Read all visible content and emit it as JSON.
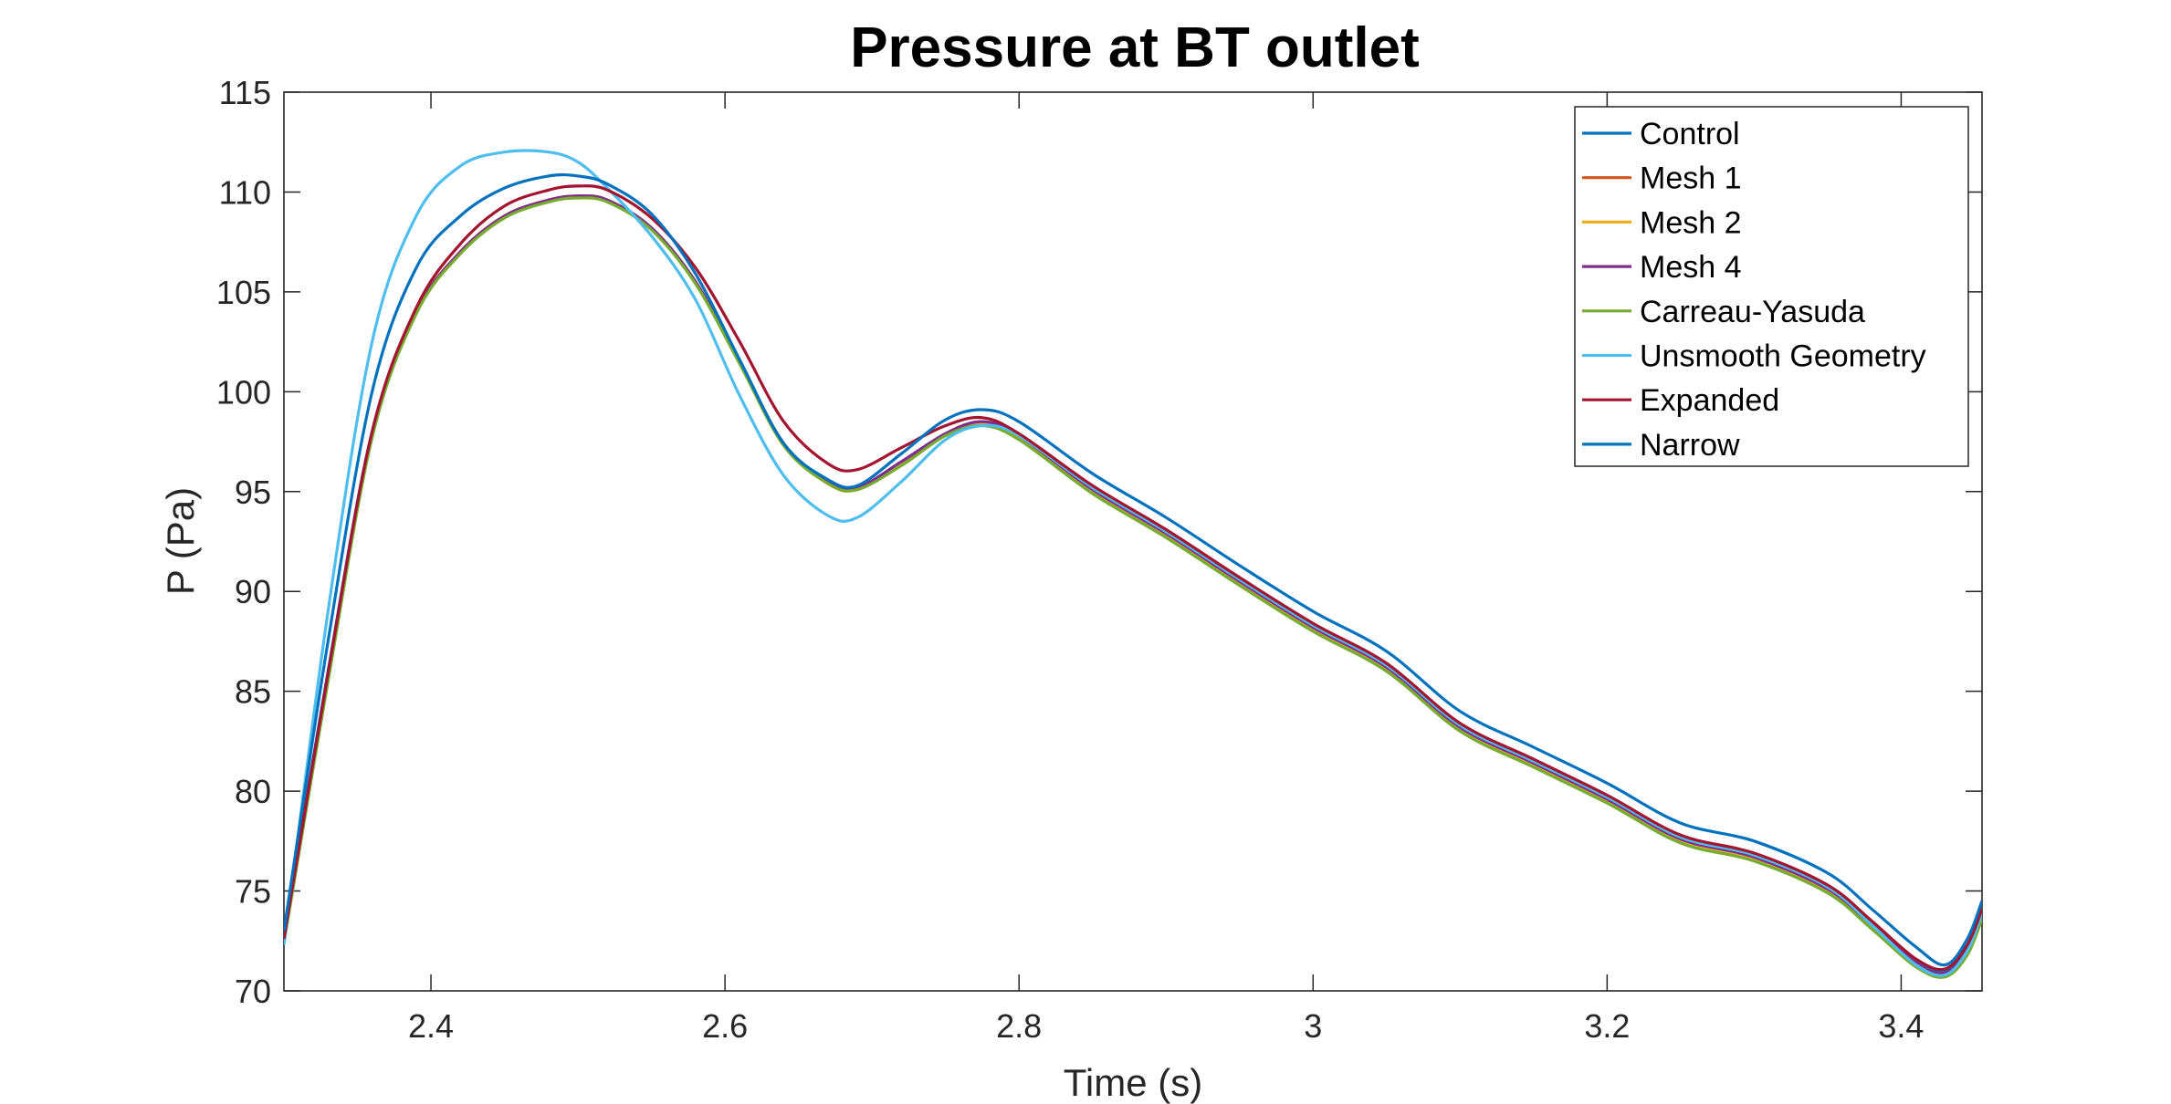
{
  "chart_data": {
    "type": "line",
    "title": "Pressure at BT outlet",
    "xlabel": "Time (s)",
    "ylabel": "P (Pa)",
    "xlim": [
      2.3,
      3.455
    ],
    "ylim": [
      70,
      115
    ],
    "xticks": [
      2.4,
      2.6,
      2.8,
      3,
      3.2,
      3.4
    ],
    "xtick_labels": [
      "2.4",
      "2.6",
      "2.8",
      "3",
      "3.2",
      "3.4"
    ],
    "yticks": [
      70,
      75,
      80,
      85,
      90,
      95,
      100,
      105,
      110,
      115
    ],
    "ytick_labels": [
      "70",
      "75",
      "80",
      "85",
      "90",
      "95",
      "100",
      "105",
      "110",
      "115"
    ],
    "grid": false,
    "legend_position": "top-right",
    "x": [
      2.3,
      2.33,
      2.36,
      2.39,
      2.42,
      2.45,
      2.48,
      2.5,
      2.52,
      2.55,
      2.58,
      2.61,
      2.64,
      2.67,
      2.69,
      2.72,
      2.75,
      2.775,
      2.8,
      2.85,
      2.9,
      2.95,
      3.0,
      3.05,
      3.1,
      3.15,
      3.2,
      3.25,
      3.3,
      3.35,
      3.38,
      3.41,
      3.43,
      3.445,
      3.455
    ],
    "series": [
      {
        "name": "Control",
        "color": "#0072BD",
        "values": [
          72.8,
          86.0,
          98.0,
          104.0,
          107.0,
          108.8,
          109.6,
          109.8,
          109.6,
          108.2,
          105.5,
          101.5,
          97.4,
          95.5,
          95.1,
          96.4,
          97.9,
          98.5,
          97.8,
          95.2,
          93.0,
          90.6,
          88.3,
          86.3,
          83.3,
          81.5,
          79.7,
          77.7,
          76.8,
          75.2,
          73.4,
          71.5,
          71.0,
          72.2,
          74.0
        ]
      },
      {
        "name": "Mesh 1",
        "color": "#D95319",
        "values": [
          72.5,
          85.7,
          97.8,
          104.0,
          107.0,
          108.8,
          109.6,
          109.8,
          109.6,
          108.2,
          105.5,
          101.5,
          97.4,
          95.5,
          95.1,
          96.4,
          97.9,
          98.5,
          97.8,
          95.1,
          92.9,
          90.5,
          88.2,
          86.2,
          83.2,
          81.4,
          79.6,
          77.6,
          76.7,
          75.1,
          73.3,
          71.4,
          70.9,
          72.0,
          73.8
        ]
      },
      {
        "name": "Mesh 2",
        "color": "#EDB120",
        "values": [
          72.5,
          85.6,
          97.8,
          104.0,
          107.0,
          108.8,
          109.6,
          109.8,
          109.6,
          108.2,
          105.5,
          101.5,
          97.4,
          95.4,
          95.1,
          96.4,
          97.8,
          98.4,
          97.7,
          95.0,
          92.8,
          90.4,
          88.1,
          86.1,
          83.1,
          81.3,
          79.5,
          77.5,
          76.6,
          75.0,
          73.2,
          71.3,
          70.8,
          71.9,
          73.7
        ]
      },
      {
        "name": "Mesh 4",
        "color": "#7E2F8E",
        "values": [
          72.6,
          85.8,
          97.9,
          104.0,
          107.0,
          108.8,
          109.6,
          109.8,
          109.6,
          108.2,
          105.5,
          101.5,
          97.4,
          95.5,
          95.2,
          96.5,
          97.9,
          98.5,
          97.8,
          95.1,
          92.9,
          90.5,
          88.2,
          86.2,
          83.2,
          81.4,
          79.6,
          77.6,
          76.7,
          75.1,
          73.3,
          71.4,
          70.9,
          72.0,
          73.8
        ]
      },
      {
        "name": "Carreau-Yasuda",
        "color": "#77AC30",
        "values": [
          72.4,
          85.5,
          97.7,
          103.9,
          106.9,
          108.7,
          109.5,
          109.7,
          109.5,
          108.1,
          105.4,
          101.4,
          97.3,
          95.4,
          95.1,
          96.3,
          97.8,
          98.3,
          97.6,
          94.9,
          92.7,
          90.3,
          88.0,
          86.0,
          83.0,
          81.2,
          79.4,
          77.4,
          76.5,
          74.9,
          73.1,
          71.2,
          70.7,
          71.8,
          73.6
        ]
      },
      {
        "name": "Unsmooth Geometry",
        "color": "#4DBEEE",
        "values": [
          72.3,
          89.0,
          102.5,
          108.8,
          111.3,
          112.0,
          112.0,
          111.5,
          110.2,
          107.8,
          104.6,
          99.8,
          95.8,
          93.8,
          93.7,
          95.5,
          97.6,
          98.3,
          97.8,
          95.2,
          93.0,
          90.6,
          88.3,
          86.3,
          83.3,
          81.5,
          79.7,
          77.7,
          76.8,
          75.2,
          73.3,
          71.3,
          70.8,
          72.0,
          73.9
        ]
      },
      {
        "name": "Expanded",
        "color": "#A2142F",
        "values": [
          72.6,
          85.9,
          98.0,
          104.2,
          107.4,
          109.3,
          110.1,
          110.3,
          110.1,
          108.7,
          106.2,
          102.5,
          98.5,
          96.4,
          96.1,
          97.2,
          98.3,
          98.7,
          97.9,
          95.3,
          93.1,
          90.7,
          88.4,
          86.4,
          83.4,
          81.6,
          79.8,
          77.8,
          76.9,
          75.3,
          73.5,
          71.6,
          71.1,
          72.3,
          74.1
        ]
      },
      {
        "name": "Narrow",
        "color": "#0072BD",
        "values": [
          73.0,
          87.5,
          100.0,
          106.2,
          108.8,
          110.2,
          110.8,
          110.8,
          110.4,
          108.9,
          105.9,
          101.6,
          97.4,
          95.6,
          95.3,
          96.9,
          98.6,
          99.1,
          98.5,
          95.9,
          93.7,
          91.3,
          89.0,
          87.0,
          84.0,
          82.2,
          80.4,
          78.4,
          77.5,
          75.9,
          74.1,
          72.2,
          71.3,
          72.6,
          74.5
        ]
      }
    ]
  }
}
